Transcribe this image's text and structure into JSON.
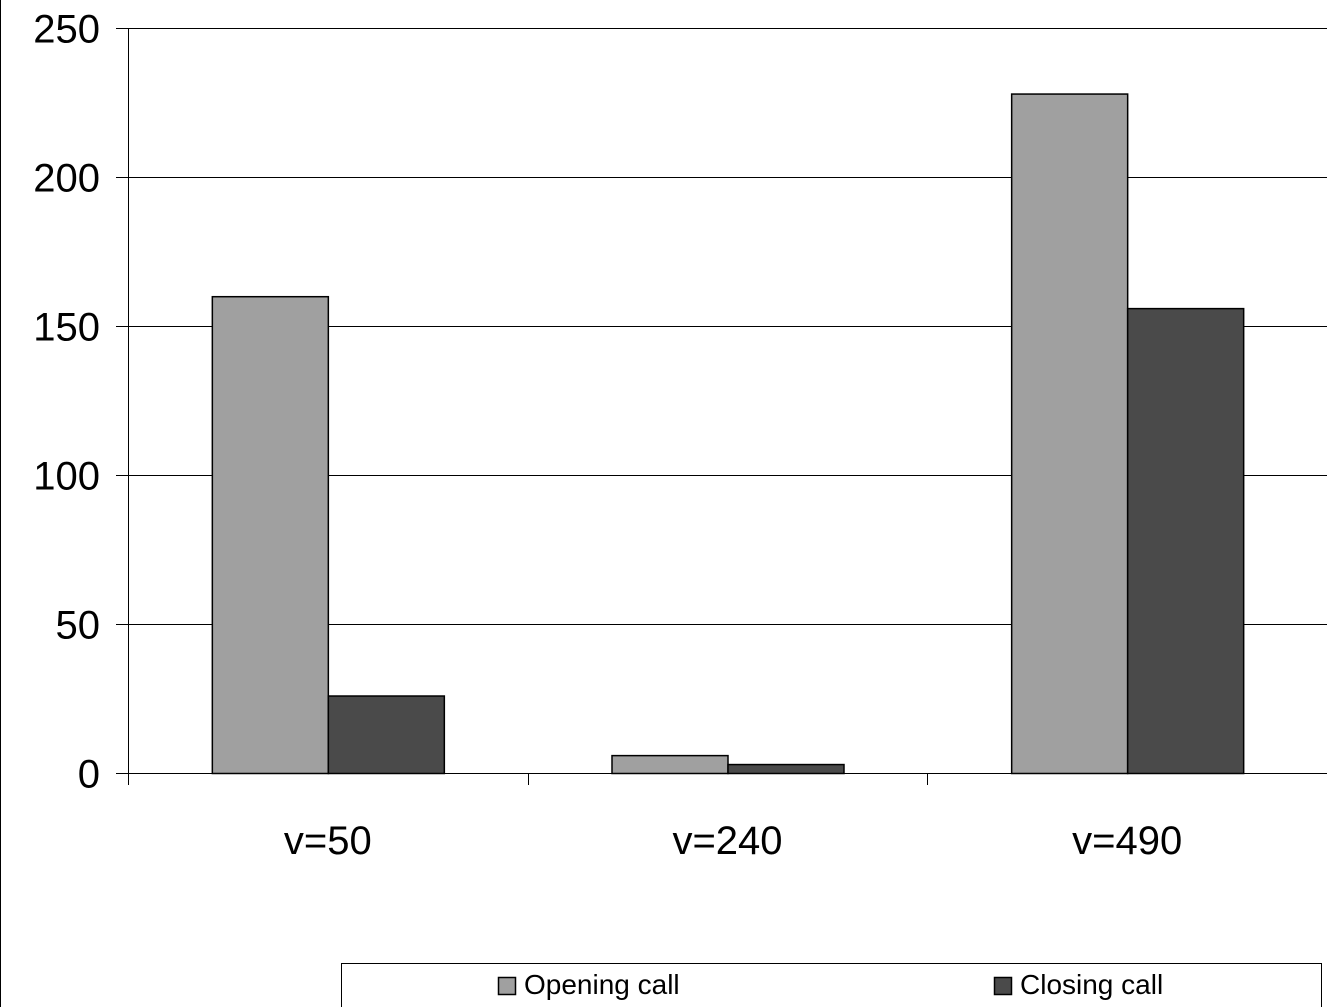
{
  "chart_data": {
    "type": "bar",
    "title": "",
    "xlabel": "",
    "ylabel": "",
    "categories": [
      "v=50",
      "v=240",
      "v=490"
    ],
    "series": [
      {
        "name": "Opening call",
        "values": [
          160,
          6,
          228
        ],
        "color": "#a0a0a0"
      },
      {
        "name": "Closing call",
        "values": [
          26,
          3,
          156
        ],
        "color": "#4a4a4a"
      }
    ],
    "ylim": [
      0,
      250
    ],
    "yticks": [
      0,
      50,
      100,
      150,
      200,
      250
    ],
    "grid": true,
    "legend": "bottom"
  }
}
